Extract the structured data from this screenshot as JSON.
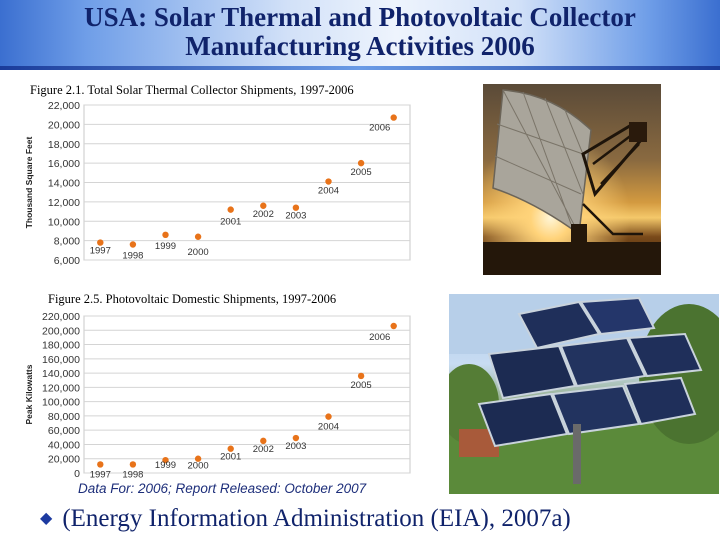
{
  "slide": {
    "title_line1": "USA: Solar Thermal and Photovoltaic Collector",
    "title_line2": "Manufacturing Activities 2006",
    "footnote": "Data For: 2006; Report Released: October 2007",
    "source": "(Energy Information Administration (EIA), 2007a)"
  },
  "colors": {
    "title": "#10236b",
    "marker": "#e8731a",
    "footnote": "#1d2e7a"
  },
  "icons": {
    "bullet": "diamond-bullet-icon"
  },
  "chart_data": [
    {
      "type": "scatter",
      "title": "Figure 2.1. Total Solar Thermal Collector Shipments, 1997-2006",
      "ylabel": "Thousand Square Feet",
      "xlabel": "",
      "ylim": [
        6000,
        22000
      ],
      "yticks": [
        6000,
        8000,
        10000,
        12000,
        14000,
        16000,
        18000,
        20000,
        22000
      ],
      "ytick_labels": [
        "6,000",
        "8,000",
        "10,000",
        "12,000",
        "14,000",
        "16,000",
        "18,000",
        "20,000",
        "22,000"
      ],
      "grid": true,
      "x": [
        "1997",
        "1998",
        "1999",
        "2000",
        "2001",
        "2002",
        "2003",
        "2004",
        "2005",
        "2006"
      ],
      "values": [
        7800,
        7600,
        8600,
        8400,
        11200,
        11600,
        11400,
        14100,
        16000,
        20700
      ]
    },
    {
      "type": "scatter",
      "title": "Figure 2.5. Photovoltaic Domestic Shipments, 1997-2006",
      "ylabel": "Peak Kilowatts",
      "xlabel": "",
      "ylim": [
        0,
        220000
      ],
      "yticks": [
        0,
        20000,
        40000,
        60000,
        80000,
        100000,
        120000,
        140000,
        160000,
        180000,
        200000,
        220000
      ],
      "ytick_labels": [
        "0",
        "20,000",
        "40,000",
        "60,000",
        "80,000",
        "100,000",
        "120,000",
        "140,000",
        "160,000",
        "180,000",
        "200,000",
        "220,000"
      ],
      "grid": true,
      "x": [
        "1997",
        "1998",
        "1999",
        "2000",
        "2001",
        "2002",
        "2003",
        "2004",
        "2005",
        "2006"
      ],
      "values": [
        12000,
        12000,
        18000,
        20000,
        34000,
        45000,
        49000,
        79000,
        136000,
        206000
      ]
    }
  ]
}
